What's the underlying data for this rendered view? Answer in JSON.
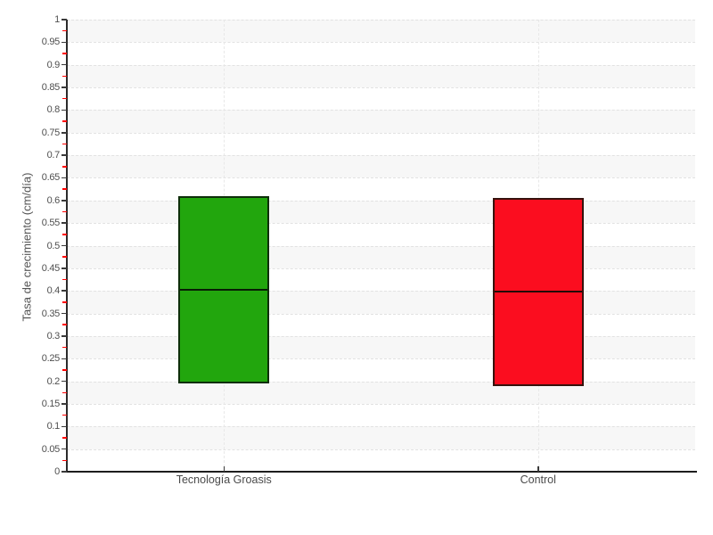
{
  "chart_data": {
    "type": "boxplot",
    "title": "",
    "xlabel": "",
    "ylabel": "Tasa de crecimiento (cm/día)",
    "categories": [
      "Tecnología Groasis",
      "Control"
    ],
    "series": [
      {
        "name": "Tecnología Groasis",
        "slug": "tecnologia-groasis",
        "color": "#22a60d",
        "low": 0.195,
        "median": 0.405,
        "high": 0.61
      },
      {
        "name": "Control",
        "slug": "control",
        "color": "#fb0d1f",
        "low": 0.19,
        "median": 0.4,
        "high": 0.605
      }
    ],
    "ylim": [
      0,
      1
    ],
    "ytick_step": 0.05,
    "minor_ticks_at_midpoints": true,
    "legend": "none",
    "grid": {
      "horizontal": "dashed line at every 0.05",
      "vertical": "dashed line at each category center",
      "alternating_bands": true
    },
    "colors": {
      "band_gray": "#f7f7f7",
      "band_white": "#ffffff",
      "gridline": "#e4e4e4",
      "axis": "#2b2b2b",
      "tick_label": "#4f4f4f",
      "minor_tick": "#ff0000",
      "box_border": "#141414",
      "median_line": "#0a0a0a"
    }
  }
}
